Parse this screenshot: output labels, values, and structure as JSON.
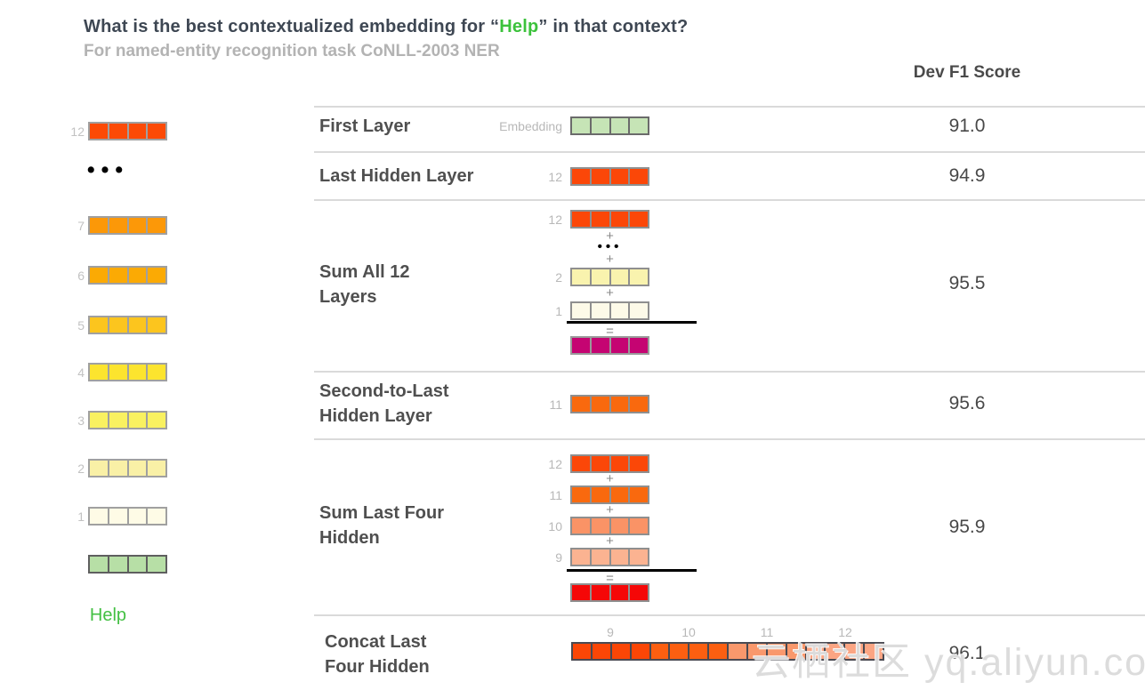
{
  "title": {
    "prefix": "What is the best contextualized embedding for “",
    "highlight": "Help",
    "suffix": "” in that context?"
  },
  "subtitle": "For named-entity recognition task CoNLL-2003 NER",
  "score_header": "Dev F1 Score",
  "word_label": "Help",
  "ops": {
    "plus": "+",
    "equals": "=",
    "dots": "•••"
  },
  "watermark": "云栖社区 yq.aliyun.com",
  "left_stack": {
    "labels": {
      "l12": "12",
      "l7": "7",
      "l6": "6",
      "l5": "5",
      "l4": "4",
      "l3": "3",
      "l2": "2",
      "l1": "1"
    }
  },
  "rows": [
    {
      "label": "First Layer",
      "bar_label": "Embedding",
      "score": "91.0"
    },
    {
      "label": "Last Hidden Layer",
      "bar_label": "12",
      "score": "94.9"
    },
    {
      "label": "Sum All 12 Layers",
      "bar_labels": {
        "top": "12",
        "mid": "2",
        "bottom": "1"
      },
      "score": "95.5"
    },
    {
      "label": "Second-to-Last Hidden Layer",
      "bar_label": "11",
      "score": "95.6"
    },
    {
      "label": "Sum Last Four Hidden",
      "bar_labels": {
        "a": "12",
        "b": "11",
        "c": "10",
        "d": "9"
      },
      "score": "95.9"
    },
    {
      "label": "Concat Last Four Hidden",
      "group_labels": [
        "9",
        "10",
        "11",
        "12"
      ],
      "score": "96.1"
    }
  ],
  "bars": {
    "stack12": {
      "cells": 4,
      "color": "#fc4a06",
      "border": "#a0a0a0"
    },
    "stack7": {
      "cells": 4,
      "color": "#fc9808",
      "border": "#a0a0a0"
    },
    "stack6": {
      "cells": 4,
      "color": "#fbaa04",
      "border": "#a0a0a0"
    },
    "stack5": {
      "cells": 4,
      "color": "#fcc51e",
      "border": "#a0a0a0"
    },
    "stack4": {
      "cells": 4,
      "color": "#fce42e",
      "border": "#a0a0a0"
    },
    "stack3": {
      "cells": 4,
      "color": "#f9f160",
      "border": "#a0a0a0"
    },
    "stack2": {
      "cells": 4,
      "color": "#f9f0a6",
      "border": "#a0a0a0"
    },
    "stack1": {
      "cells": 4,
      "color": "#fefbe6",
      "border": "#a0a0a0"
    },
    "stackEmb": {
      "cells": 4,
      "color": "#b7dfa6",
      "border": "#5f5f5f"
    },
    "embedding": {
      "cells": 4,
      "color": "#c6e4b6",
      "border": "#6b6b6b"
    },
    "last12": {
      "cells": 4,
      "color": "#fb4708",
      "border": "#8f8f8f"
    },
    "sumall12": {
      "cells": 4,
      "color": "#fb4708",
      "border": "#8f8f8f"
    },
    "sumall2": {
      "cells": 4,
      "color": "#f9f3ae",
      "border": "#8f8f8f"
    },
    "sumall1": {
      "cells": 4,
      "color": "#fdfae8",
      "border": "#8f8f8f"
    },
    "sumallRes": {
      "cells": 4,
      "color": "#c50472",
      "border": "#9a9a9a"
    },
    "second11": {
      "cells": 4,
      "color": "#f9690e",
      "border": "#8f8f8f"
    },
    "sum4_12": {
      "cells": 4,
      "color": "#fb4708",
      "border": "#8f8f8f"
    },
    "sum4_11": {
      "cells": 4,
      "color": "#f9690e",
      "border": "#8f8f8f"
    },
    "sum4_10": {
      "cells": 4,
      "color": "#fa9366",
      "border": "#8f8f8f"
    },
    "sum4_9": {
      "cells": 4,
      "color": "#fbb391",
      "border": "#8f8f8f"
    },
    "sum4Res": {
      "cells": 4,
      "color": "#f50707",
      "border": "#8f8f8f"
    },
    "concat": {
      "border": "#4a4a52",
      "cells_colors": [
        "#fb4606",
        "#fb4606",
        "#fb4606",
        "#fb4606",
        "#fc5f11",
        "#fc5f11",
        "#fc5f11",
        "#fc5f11",
        "#f9986c",
        "#f9986c",
        "#f9986c",
        "#f9986c",
        "#fba583",
        "#fba583",
        "#fba583",
        "#fba583"
      ]
    }
  }
}
